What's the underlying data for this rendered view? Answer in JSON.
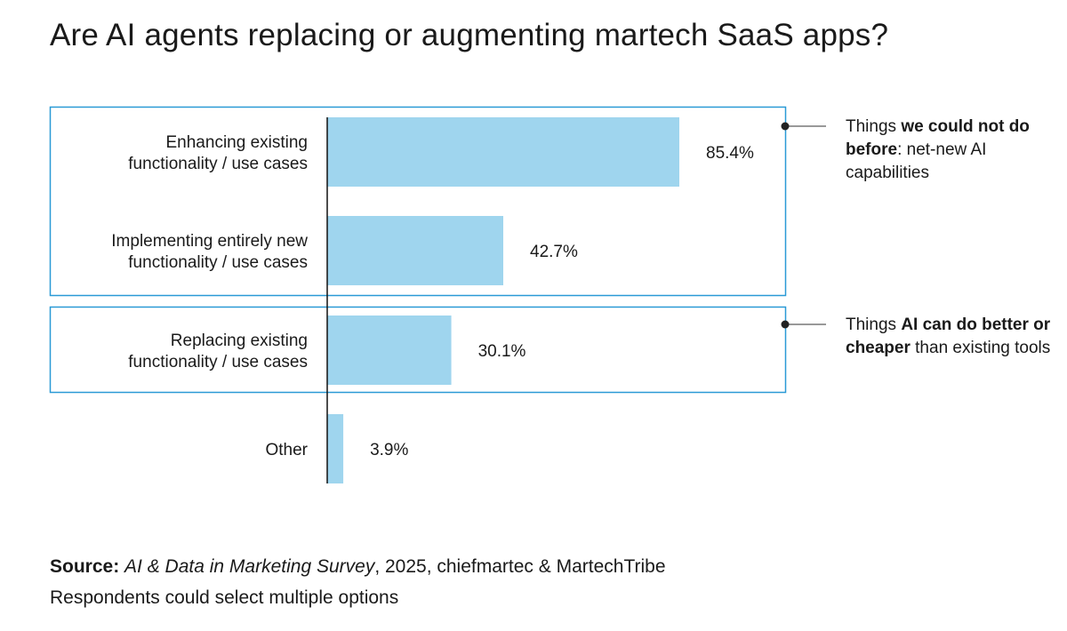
{
  "chart_data": {
    "type": "bar",
    "orientation": "horizontal",
    "title": "Are AI agents replacing or augmenting martech SaaS apps?",
    "categories": [
      [
        "Enhancing existing",
        "functionality / use cases"
      ],
      [
        "Implementing entirely new",
        "functionality / use cases"
      ],
      [
        "Replacing existing",
        "functionality / use cases"
      ],
      [
        "Other"
      ]
    ],
    "values": [
      85.4,
      42.7,
      30.1,
      3.9
    ],
    "value_labels": [
      "85.4%",
      "42.7%",
      "30.1%",
      "3.9%"
    ],
    "xlim": [
      0,
      100
    ],
    "grid": false,
    "bar_color": "#9fd5ee",
    "group_box_color": "#2a9ad6",
    "annotations": [
      {
        "groups": [
          0,
          1
        ],
        "pre": "Things ",
        "bold": "we could not do before",
        "post": ": net-new AI capabilities"
      },
      {
        "groups": [
          2
        ],
        "pre": "Things ",
        "bold": "AI can do better or cheaper",
        "post": " than existing tools"
      }
    ]
  },
  "footer": {
    "source_label": "Source:",
    "survey": "AI & Data in Marketing Survey",
    "rest": ", 2025, chiefmartec & MartechTribe",
    "note": "Respondents could select multiple options"
  }
}
